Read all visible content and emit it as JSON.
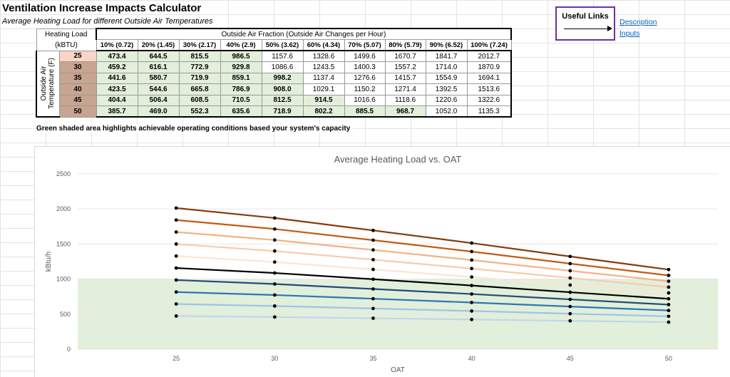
{
  "title": "Ventilation Increase Impacts Calculator",
  "subtitle": "Average Heating Load for different Outside Air Temperatures",
  "useful_links": {
    "title": "Useful Links",
    "items": [
      "Description",
      "Inputs"
    ]
  },
  "table": {
    "corner_line1": "Heating Load",
    "corner_line2": "(kBTU)",
    "group_header": "Outside Air Fraction (Outside Air Changes per Hour)",
    "side_label_line1": "Outside Air",
    "side_label_line2": "Temperature (F)",
    "columns": [
      "10% (0.72)",
      "20% (1.45)",
      "30% (2.17)",
      "40% (2.9)",
      "50% (3.62)",
      "60% (4.34)",
      "70% (5.07)",
      "80% (5.79)",
      "90% (6.52)",
      "100% (7.24)"
    ],
    "rows": [
      {
        "temp": "25",
        "values": [
          "473.4",
          "644.5",
          "815.5",
          "986.5",
          "1157.6",
          "1328.6",
          "1499.6",
          "1670.7",
          "1841.7",
          "2012.7"
        ],
        "achievable": 4
      },
      {
        "temp": "30",
        "values": [
          "459.2",
          "616.1",
          "772.9",
          "929.8",
          "1086.6",
          "1243.5",
          "1400.3",
          "1557.2",
          "1714.0",
          "1870.9"
        ],
        "achievable": 4
      },
      {
        "temp": "35",
        "values": [
          "441.6",
          "580.7",
          "719.9",
          "859.1",
          "998.2",
          "1137.4",
          "1276.6",
          "1415.7",
          "1554.9",
          "1694.1"
        ],
        "achievable": 5
      },
      {
        "temp": "40",
        "values": [
          "423.5",
          "544.6",
          "665.8",
          "786.9",
          "908.0",
          "1029.1",
          "1150.2",
          "1271.4",
          "1392.5",
          "1513.6"
        ],
        "achievable": 5
      },
      {
        "temp": "45",
        "values": [
          "404.4",
          "506.4",
          "608.5",
          "710.5",
          "812.5",
          "914.5",
          "1016.6",
          "1118.6",
          "1220.6",
          "1322.6"
        ],
        "achievable": 6
      },
      {
        "temp": "50",
        "values": [
          "385.7",
          "469.0",
          "552.3",
          "635.6",
          "718.9",
          "802.2",
          "885.5",
          "968.7",
          "1052.0",
          "1135.3"
        ],
        "achievable": 8
      }
    ]
  },
  "note": "Green shaded area highlights achievable operating conditions based your system's capacity",
  "colors": {
    "achievable_fill": "#e2efda",
    "links_border": "#7030a0",
    "link": "#0563c1",
    "chart_band": "#e2efda"
  },
  "chart_data": {
    "type": "line",
    "title": "Average Heating Load vs. OAT",
    "xlabel": "OAT",
    "ylabel": "kBtu/h",
    "x": [
      25,
      30,
      35,
      40,
      45,
      50
    ],
    "y_ticks": [
      "0",
      "500",
      "1000",
      "1500",
      "2000",
      "2500"
    ],
    "x_ticks": [
      "25",
      "30",
      "35",
      "40",
      "45",
      "50"
    ],
    "ylim": [
      0,
      2500
    ],
    "xlim": [
      20,
      52.5
    ],
    "capacity_band": [
      0,
      1000
    ],
    "grid": "horizontal",
    "series": [
      {
        "values": [
          473.4,
          459.2,
          441.6,
          423.5,
          404.4,
          385.7
        ],
        "color": "#bdd7ee"
      },
      {
        "values": [
          644.5,
          616.1,
          580.7,
          544.6,
          506.4,
          469.0
        ],
        "color": "#9dc3e6"
      },
      {
        "values": [
          815.5,
          772.9,
          719.9,
          665.8,
          608.5,
          552.3
        ],
        "color": "#2e75b6"
      },
      {
        "values": [
          986.5,
          929.8,
          859.1,
          786.9,
          710.5,
          635.6
        ],
        "color": "#1f4e79"
      },
      {
        "values": [
          1157.6,
          1086.6,
          998.2,
          908.0,
          812.5,
          718.9
        ],
        "color": "#000000"
      },
      {
        "values": [
          1328.6,
          1243.5,
          1137.4,
          1029.1,
          914.5,
          802.2
        ],
        "color": "#fbe5d6"
      },
      {
        "values": [
          1499.6,
          1400.3,
          1276.6,
          1150.2,
          1016.6,
          885.5
        ],
        "color": "#f8cbad"
      },
      {
        "values": [
          1670.7,
          1557.2,
          1415.7,
          1271.4,
          1118.6,
          968.7
        ],
        "color": "#f4b183"
      },
      {
        "values": [
          1841.7,
          1714.0,
          1554.9,
          1392.5,
          1220.6,
          1052.0
        ],
        "color": "#c55a11"
      },
      {
        "values": [
          2012.7,
          1870.9,
          1694.1,
          1513.6,
          1322.6,
          1135.3
        ],
        "color": "#843c0c"
      }
    ]
  }
}
